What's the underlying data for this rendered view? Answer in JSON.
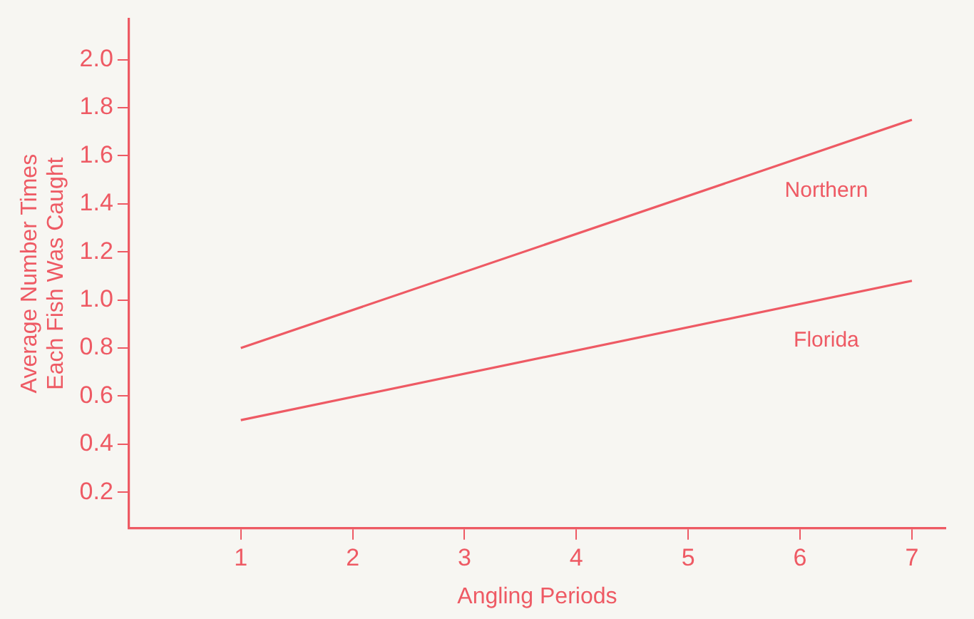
{
  "chart_data": {
    "type": "line",
    "xlabel": "Angling Periods",
    "ylabel": "Average Number Times\nEach Fish Was Caught",
    "xlim": [
      0,
      7.3
    ],
    "xticks": [
      1,
      2,
      3,
      4,
      5,
      6,
      7
    ],
    "ylim": [
      0.05,
      2.17
    ],
    "yticks": [
      {
        "value": 0.2,
        "label": "0.2"
      },
      {
        "value": 0.4,
        "label": "0.4"
      },
      {
        "value": 0.6,
        "label": "0.6"
      },
      {
        "value": 0.8,
        "label": "0.8"
      },
      {
        "value": 1.0,
        "label": "1.0"
      },
      {
        "value": 1.2,
        "label": "1.2"
      },
      {
        "value": 1.4,
        "label": "1.4"
      },
      {
        "value": 1.6,
        "label": "1.6"
      },
      {
        "value": 1.8,
        "label": "1.8"
      },
      {
        "value": 2.0,
        "label": "2.0"
      }
    ],
    "x": [
      1,
      7
    ],
    "series": [
      {
        "name": "Northern",
        "color": "#ee5a64",
        "values": [
          0.8,
          1.75
        ]
      },
      {
        "name": "Florida",
        "color": "#ee5a64",
        "values": [
          0.5,
          1.08
        ]
      }
    ],
    "grid": false,
    "legend": false,
    "marker": "none",
    "line_style": "solid"
  }
}
